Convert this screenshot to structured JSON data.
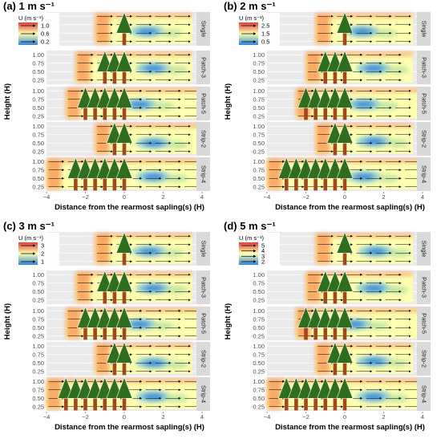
{
  "figure": {
    "x_axis_label": "Distance from the rearmost sapling(s) (H)",
    "y_axis_label": "Height (H)",
    "x_ticks": [
      "−4",
      "−2",
      "0",
      "2",
      "4"
    ],
    "y_ticks": [
      "1.00",
      "0.75",
      "0.50",
      "0.25"
    ],
    "legend_title": "U (m s⁻¹)",
    "colors": {
      "arrow": "#000000",
      "foliage": "#2e6e1e",
      "trunk": "#a0471c",
      "strip_bg": "#d9d9d9",
      "panel_bg": "#ebebeb",
      "low": "#2e86d8",
      "mid": "#ffffb0",
      "high": "#e0403a"
    }
  },
  "chart_data": [
    {
      "type": "heatmap",
      "title": "(a) 1 m s⁻¹",
      "xlim": [
        -4,
        4
      ],
      "ylim": [
        0.125,
        1.125
      ],
      "legend_values": [
        "1.0",
        "0.6",
        "0.2"
      ],
      "facets": [
        {
          "label": "Single",
          "trees_x": [
            0
          ],
          "field_xrange": [
            -1.5,
            3.5
          ],
          "cool_center": [
            1.2,
            0.55
          ]
        },
        {
          "label": "Patch-3",
          "trees_x": [
            -1,
            -0.5,
            0
          ],
          "field_xrange": [
            -2.5,
            3.5
          ],
          "cool_center": [
            1.5,
            0.6
          ]
        },
        {
          "label": "Patch-5",
          "trees_x": [
            -2,
            -1.5,
            -1,
            -0.5,
            0
          ],
          "field_xrange": [
            -3,
            4
          ],
          "cool_center": [
            0.8,
            0.6
          ]
        },
        {
          "label": "Strip-2",
          "trees_x": [
            -0.5,
            0
          ],
          "field_xrange": [
            -1.5,
            4
          ],
          "cool_center": [
            1.5,
            0.5
          ]
        },
        {
          "label": "Strip-4",
          "trees_x": [
            -2.5,
            -2,
            -1.5,
            -1,
            -0.5,
            0
          ],
          "field_xrange": [
            -4,
            4
          ],
          "cool_center": [
            1.5,
            0.55
          ]
        }
      ]
    },
    {
      "type": "heatmap",
      "title": "(b) 2 m s⁻¹",
      "xlim": [
        -4,
        4
      ],
      "ylim": [
        0.125,
        1.125
      ],
      "legend_values": [
        "2.5",
        "1.5",
        "0.5"
      ],
      "facets": [
        {
          "label": "Single",
          "trees_x": [
            0
          ],
          "field_xrange": [
            -1.5,
            3.5
          ],
          "cool_center": [
            0.9,
            0.55
          ]
        },
        {
          "label": "Patch-3",
          "trees_x": [
            -1,
            -0.5,
            0
          ],
          "field_xrange": [
            -2,
            3.5
          ],
          "cool_center": [
            1.5,
            0.6
          ]
        },
        {
          "label": "Patch-5",
          "trees_x": [
            -2,
            -1.5,
            -1,
            -0.5,
            0
          ],
          "field_xrange": [
            -2.5,
            4
          ],
          "cool_center": [
            1.0,
            0.6
          ]
        },
        {
          "label": "Strip-2",
          "trees_x": [
            -0.5,
            0
          ],
          "field_xrange": [
            -1.5,
            3.5
          ],
          "cool_center": [
            1.5,
            0.55
          ]
        },
        {
          "label": "Strip-4",
          "trees_x": [
            -3,
            -2.5,
            -2,
            -1.5,
            -1,
            -0.5,
            0
          ],
          "field_xrange": [
            -4,
            4
          ],
          "cool_center": [
            1.0,
            0.55
          ]
        }
      ]
    },
    {
      "type": "heatmap",
      "title": "(c) 3 m s⁻¹",
      "xlim": [
        -4,
        4
      ],
      "ylim": [
        0.125,
        1.125
      ],
      "legend_values": [
        "3",
        "2",
        "1"
      ],
      "facets": [
        {
          "label": "Single",
          "trees_x": [
            0
          ],
          "field_xrange": [
            -1.5,
            3.5
          ],
          "cool_center": [
            1.3,
            0.55
          ]
        },
        {
          "label": "Patch-3",
          "trees_x": [
            -1,
            -0.5,
            0
          ],
          "field_xrange": [
            -2.5,
            3.5
          ],
          "cool_center": [
            1.5,
            0.6
          ]
        },
        {
          "label": "Patch-5",
          "trees_x": [
            -2,
            -1.5,
            -1,
            -0.5,
            0
          ],
          "field_xrange": [
            -3,
            4
          ],
          "cool_center": [
            0.8,
            0.6
          ]
        },
        {
          "label": "Strip-2",
          "trees_x": [
            -0.5,
            0
          ],
          "field_xrange": [
            -1.5,
            3.5
          ],
          "cool_center": [
            1.5,
            0.5
          ]
        },
        {
          "label": "Strip-4",
          "trees_x": [
            -3,
            -2.5,
            -2,
            -1.5,
            -1,
            -0.5,
            0
          ],
          "field_xrange": [
            -4,
            4
          ],
          "cool_center": [
            1.5,
            0.55
          ]
        }
      ]
    },
    {
      "type": "heatmap",
      "title": "(d) 5 m s⁻¹",
      "xlim": [
        -4,
        4
      ],
      "ylim": [
        0.125,
        1.125
      ],
      "legend_values": [
        "5",
        "4",
        "3",
        "2"
      ],
      "facets": [
        {
          "label": "Single",
          "trees_x": [
            0
          ],
          "field_xrange": [
            -1.5,
            3.5
          ],
          "cool_center": [
            1.6,
            0.55
          ]
        },
        {
          "label": "Patch-3",
          "trees_x": [
            -1,
            -0.5,
            0
          ],
          "field_xrange": [
            -2,
            3.5
          ],
          "cool_center": [
            1.5,
            0.6
          ]
        },
        {
          "label": "Patch-5",
          "trees_x": [
            -2,
            -1.5,
            -1,
            -0.5,
            0
          ],
          "field_xrange": [
            -2.5,
            4
          ],
          "cool_center": [
            0.5,
            0.6
          ]
        },
        {
          "label": "Strip-2",
          "trees_x": [
            -0.5,
            0
          ],
          "field_xrange": [
            -1.5,
            3.5
          ],
          "cool_center": [
            1.5,
            0.55
          ]
        },
        {
          "label": "Strip-4",
          "trees_x": [
            -3,
            -2.5,
            -2,
            -1.5,
            -1,
            -0.5,
            0
          ],
          "field_xrange": [
            -4,
            4
          ],
          "cool_center": [
            1.5,
            0.55
          ]
        }
      ]
    }
  ]
}
